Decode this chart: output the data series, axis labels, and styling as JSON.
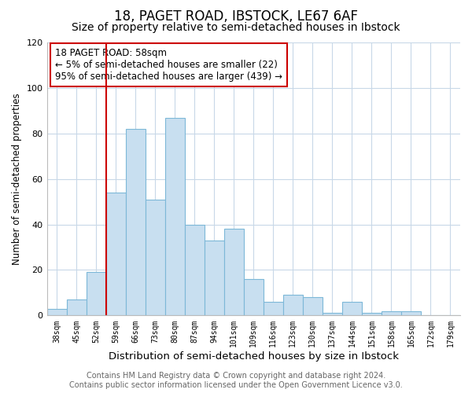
{
  "title": "18, PAGET ROAD, IBSTOCK, LE67 6AF",
  "subtitle": "Size of property relative to semi-detached houses in Ibstock",
  "xlabel": "Distribution of semi-detached houses by size in Ibstock",
  "ylabel": "Number of semi-detached properties",
  "categories": [
    "38sqm",
    "45sqm",
    "52sqm",
    "59sqm",
    "66sqm",
    "73sqm",
    "80sqm",
    "87sqm",
    "94sqm",
    "101sqm",
    "109sqm",
    "116sqm",
    "123sqm",
    "130sqm",
    "137sqm",
    "144sqm",
    "151sqm",
    "158sqm",
    "165sqm",
    "172sqm",
    "179sqm"
  ],
  "values": [
    3,
    7,
    19,
    54,
    82,
    51,
    87,
    40,
    33,
    38,
    16,
    6,
    9,
    8,
    1,
    6,
    1,
    2,
    2,
    0,
    0
  ],
  "bar_color": "#c8dff0",
  "bar_edge_color": "#7db8d8",
  "vline_x_index": 3,
  "vline_color": "#cc0000",
  "annotation_box_text": "18 PAGET ROAD: 58sqm\n← 5% of semi-detached houses are smaller (22)\n95% of semi-detached houses are larger (439) →",
  "ylim": [
    0,
    120
  ],
  "yticks": [
    0,
    20,
    40,
    60,
    80,
    100,
    120
  ],
  "bg_color": "#ffffff",
  "grid_color": "#c8d8e8",
  "footer": "Contains HM Land Registry data © Crown copyright and database right 2024.\nContains public sector information licensed under the Open Government Licence v3.0.",
  "title_fontsize": 12,
  "subtitle_fontsize": 10,
  "xlabel_fontsize": 9.5,
  "ylabel_fontsize": 8.5,
  "footer_fontsize": 7,
  "annotation_fontsize": 8.5
}
